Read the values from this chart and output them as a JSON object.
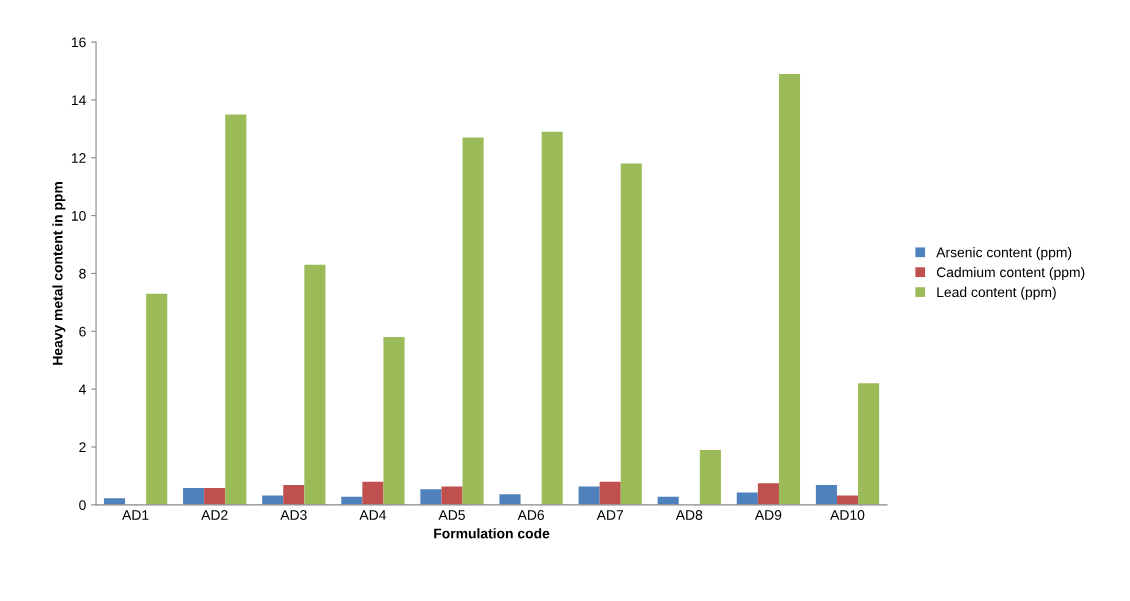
{
  "chart_data": {
    "type": "bar",
    "xlabel": "Formulation code",
    "ylabel": "Heavy metal content in ppm",
    "categories": [
      "AD1",
      "AD2",
      "AD3",
      "AD4",
      "AD5",
      "AD6",
      "AD7",
      "AD8",
      "AD9",
      "AD10"
    ],
    "series": [
      {
        "name": "Arsenic content (ppm)",
        "color": "#4f81bd",
        "values": [
          0.23,
          0.58,
          0.32,
          0.28,
          0.54,
          0.37,
          0.63,
          0.28,
          0.43,
          0.69
        ]
      },
      {
        "name": "Cadmium content (ppm)",
        "color": "#c0504d",
        "values": [
          0,
          0.58,
          0.69,
          0.8,
          0.63,
          0,
          0.8,
          0,
          0.75,
          0.32
        ]
      },
      {
        "name": "Lead content (ppm)",
        "color": "#9bbb59",
        "values": [
          7.3,
          13.5,
          8.3,
          5.8,
          12.7,
          12.9,
          11.8,
          1.9,
          14.9,
          4.2
        ]
      }
    ],
    "ylim": [
      0,
      16
    ],
    "yticks": [
      0,
      2,
      4,
      6,
      8,
      10,
      12,
      14,
      16
    ],
    "grid": false,
    "legend": "right"
  }
}
